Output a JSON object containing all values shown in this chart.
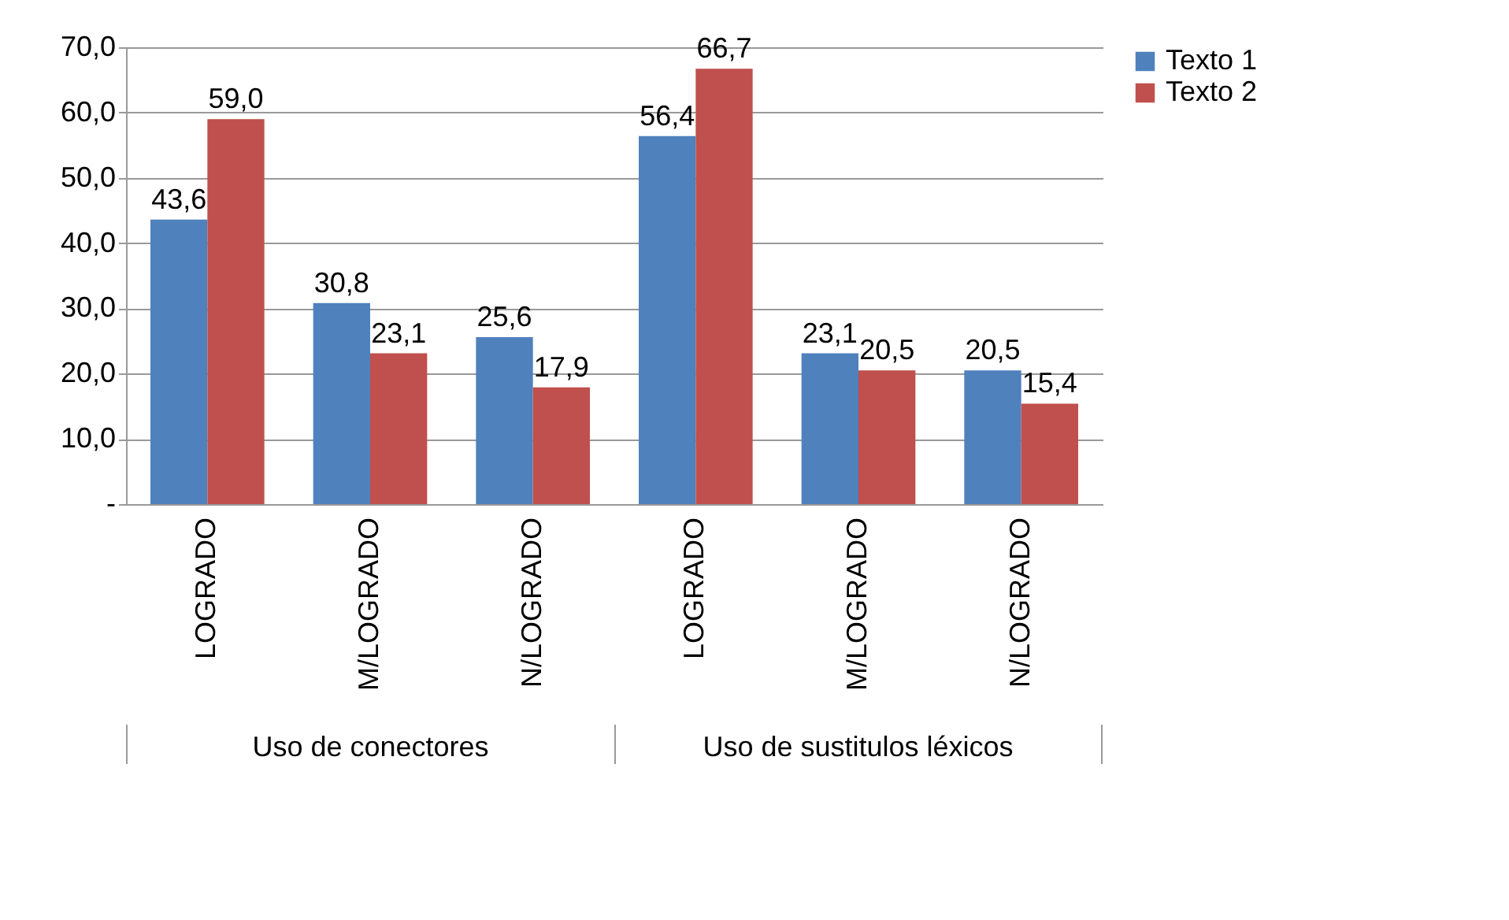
{
  "chart_data": {
    "type": "bar",
    "categories": [
      "LOGRADO",
      "M/LOGRADO",
      "N/LOGRADO",
      "LOGRADO",
      "M/LOGRADO",
      "N/LOGRADO"
    ],
    "series": [
      {
        "name": "Texto 1",
        "color": "#4f81bd",
        "values": [
          43.6,
          30.8,
          25.6,
          56.4,
          23.1,
          20.5
        ],
        "value_labels": [
          "43,6",
          "30,8",
          "25,6",
          "56,4",
          "23,1",
          "20,5"
        ]
      },
      {
        "name": "Texto 2",
        "color": "#c0504d",
        "values": [
          59.0,
          23.1,
          17.9,
          66.7,
          20.5,
          15.4
        ],
        "value_labels": [
          "59,0",
          "23,1",
          "17,9",
          "66,7",
          "20,5",
          "15,4"
        ]
      }
    ],
    "annotations": [
      "Uso de conectores",
      "Uso de sustitulos léxicos"
    ],
    "ylim": [
      0,
      70
    ],
    "yticks": [
      {
        "value": 0,
        "label": "-"
      },
      {
        "value": 10,
        "label": "10,0"
      },
      {
        "value": 20,
        "label": "20,0"
      },
      {
        "value": 30,
        "label": "30,0"
      },
      {
        "value": 40,
        "label": "40,0"
      },
      {
        "value": 50,
        "label": "50,0"
      },
      {
        "value": 60,
        "label": "60,0"
      },
      {
        "value": 70,
        "label": "70,0"
      }
    ],
    "grid": "y",
    "legend": "right"
  }
}
